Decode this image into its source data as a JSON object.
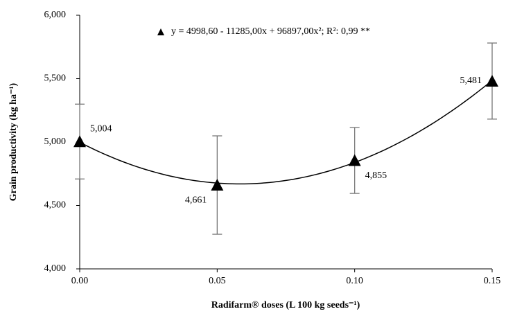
{
  "chart_data": {
    "type": "scatter",
    "legend_label": "y = 4998,60 - 11285,00x + 96897,00x²; R²: 0,99 **",
    "fit": {
      "type": "polynomial",
      "coefficients": [
        4998.6,
        -11285,
        96897
      ]
    },
    "x_label": "Radifarm® doses (L 100 kg seeds⁻¹)",
    "y_label": "Grain productivity (kg ha⁻¹)",
    "series": [
      {
        "name": "y = 4998,60 - 11285,00x + 96897,00x²; R²: 0,99 **",
        "color": "#000000",
        "x": [
          0,
          0.05,
          0.1,
          0.15
        ],
        "values": [
          5004,
          4661,
          4855,
          5481
        ],
        "value_labels": [
          "5,004",
          "4,661",
          "4,855",
          "5,481"
        ],
        "errors": [
          295,
          388,
          260,
          300
        ]
      }
    ],
    "xlim": [
      0,
      0.15
    ],
    "xticks": [
      {
        "value": 0,
        "label": "0.00"
      },
      {
        "value": 0.05,
        "label": "0.05"
      },
      {
        "value": 0.1,
        "label": "0.10"
      },
      {
        "value": 0.15,
        "label": "0.15"
      }
    ],
    "ylim": [
      4000,
      6000
    ],
    "yticks": [
      {
        "value": 4000,
        "label": "4,000"
      },
      {
        "value": 4500,
        "label": "4,500"
      },
      {
        "value": 5000,
        "label": "5,000"
      },
      {
        "value": 5500,
        "label": "5,500"
      },
      {
        "value": 6000,
        "label": "6,000"
      }
    ],
    "grid": false
  }
}
